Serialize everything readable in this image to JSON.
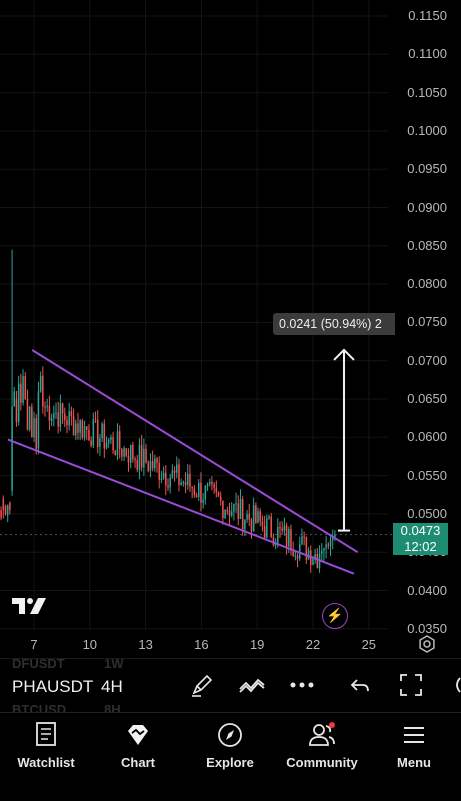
{
  "chart": {
    "symbol": "PHAUSDT",
    "interval": "4H",
    "price_axis": [
      "0.1150",
      "0.1100",
      "0.1050",
      "0.1000",
      "0.0950",
      "0.0900",
      "0.0850",
      "0.0800",
      "0.0750",
      "0.0700",
      "0.0650",
      "0.0600",
      "0.0550",
      "0.0500",
      "0.0450",
      "0.0400",
      "0.0350"
    ],
    "date_axis": [
      "7",
      "10",
      "13",
      "16",
      "19",
      "22",
      "25"
    ],
    "current_price": "0.0473",
    "countdown": "12:02",
    "measure_label": "0.0241 (50.94%) 2",
    "colors": {
      "up": "#26a69a",
      "down": "#ef5350",
      "trendline": "#9c4bd6",
      "current_price_badge": "#1e8c73"
    }
  },
  "chart_data": {
    "type": "candlestick",
    "yaxis_range": [
      0.035,
      0.1175
    ],
    "x_tick_labels": [
      "7",
      "10",
      "13",
      "16",
      "19",
      "22",
      "25"
    ],
    "current_price": 0.0473,
    "measure": {
      "from": 0.0473,
      "to": 0.0714,
      "change": "0.0241 (50.94%)"
    },
    "trendlines": [
      {
        "name": "upper",
        "points": [
          [
            6.9,
            0.0714
          ],
          [
            24.4,
            0.045
          ]
        ]
      },
      {
        "name": "lower",
        "points": [
          [
            5.6,
            0.0597
          ],
          [
            24.2,
            0.0422
          ]
        ]
      }
    ]
  },
  "ghost_symbols": {
    "above": "DFUSDT",
    "above_interval": "1W",
    "below": "BTCUSD",
    "below_interval": "8H"
  },
  "toolbar": {
    "draw_icon": "pencil-icon",
    "indicators_icon": "indicators-icon",
    "more_icon": "more-icon",
    "undo_icon": "undo-icon",
    "fullscreen_icon": "fullscreen-icon"
  },
  "nav": [
    {
      "label": "Watchlist",
      "icon": "watchlist-icon"
    },
    {
      "label": "Chart",
      "icon": "chart-icon"
    },
    {
      "label": "Explore",
      "icon": "compass-icon"
    },
    {
      "label": "Community",
      "icon": "community-icon"
    },
    {
      "label": "Menu",
      "icon": "menu-icon"
    }
  ]
}
